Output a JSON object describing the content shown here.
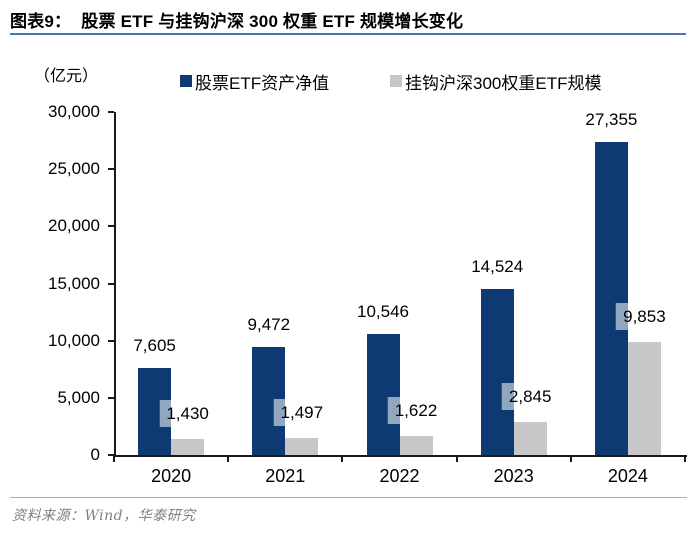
{
  "header": {
    "figure_label": "图表9：",
    "title": "股票 ETF 与挂钩沪深 300 权重 ETF 规模增长变化"
  },
  "chart": {
    "unit_label": "（亿元）"
  },
  "chart_data": {
    "type": "bar",
    "title": "股票 ETF 与挂钩沪深 300 权重 ETF 规模增长变化",
    "unit": "亿元",
    "categories": [
      "2020",
      "2021",
      "2022",
      "2023",
      "2024"
    ],
    "series": [
      {
        "name": "股票ETF资产净值",
        "color": "#0d3a72",
        "values": [
          7605,
          9472,
          10546,
          14524,
          27355
        ],
        "labels": [
          "7,605",
          "9,472",
          "10,546",
          "14,524",
          "27,355"
        ]
      },
      {
        "name": "挂钩沪深300权重ETF规模",
        "color": "#c7c7c7",
        "values": [
          1430,
          1497,
          1622,
          2845,
          9853
        ],
        "labels": [
          "1,430",
          "1,497",
          "1,622",
          "2,845",
          "9,853"
        ]
      }
    ],
    "ylim": [
      0,
      30000
    ],
    "y_tick_interval": 5000,
    "y_tick_labels": [
      "0",
      "5,000",
      "10,000",
      "15,000",
      "20,000",
      "25,000",
      "30,000"
    ],
    "grid": false,
    "legend_position": "top"
  },
  "colors": {
    "title_underline": "#4a76b4",
    "footer_divider": "#9fb1d1",
    "axis": "#1a1a1a"
  },
  "footer": {
    "source": "资料来源：Wind，华泰研究"
  }
}
